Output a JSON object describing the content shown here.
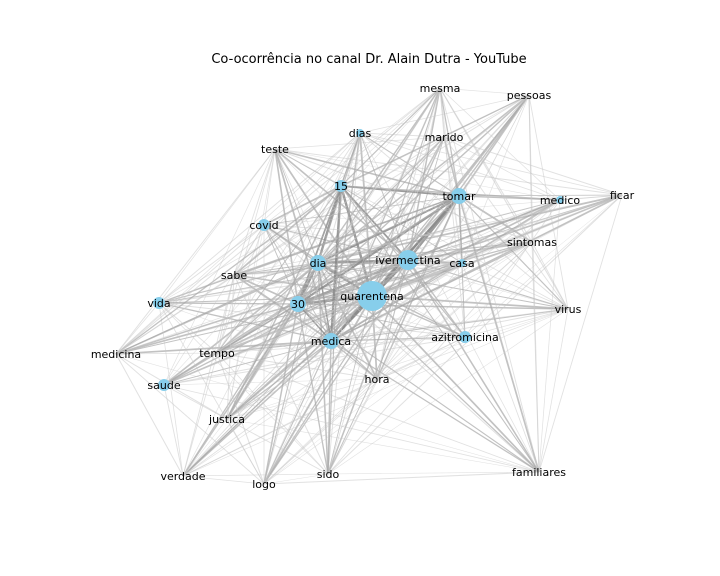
{
  "title": "Co-ocorrência no canal Dr. Alain Dutra - YouTube",
  "colors": {
    "node": "#87ceeb",
    "edge": "#aaaaaa",
    "background": "#ffffff"
  },
  "nodes": [
    {
      "id": "quarentena",
      "label": "quarentena",
      "size": "xl"
    },
    {
      "id": "ivermectina",
      "label": "ivermectina",
      "size": "lg"
    },
    {
      "id": "dia",
      "label": "dia",
      "size": "md"
    },
    {
      "id": "tomar",
      "label": "tomar",
      "size": "md"
    },
    {
      "id": "30",
      "label": "30",
      "size": "md"
    },
    {
      "id": "medica",
      "label": "medica",
      "size": "md"
    },
    {
      "id": "covid",
      "label": "covid",
      "size": "sm"
    },
    {
      "id": "vida",
      "label": "vida",
      "size": "sm"
    },
    {
      "id": "saude",
      "label": "saude",
      "size": "sm"
    },
    {
      "id": "azitromicina",
      "label": "azitromicina",
      "size": "sm"
    },
    {
      "id": "15",
      "label": "15",
      "size": "sm"
    },
    {
      "id": "dias",
      "label": "dias",
      "size": "xs"
    },
    {
      "id": "casa",
      "label": "casa",
      "size": "xs"
    },
    {
      "id": "medico",
      "label": "medico",
      "size": "xs"
    },
    {
      "id": "mesma",
      "label": "mesma",
      "size": "none"
    },
    {
      "id": "pessoas",
      "label": "pessoas",
      "size": "none"
    },
    {
      "id": "marido",
      "label": "marido",
      "size": "none"
    },
    {
      "id": "teste",
      "label": "teste",
      "size": "none"
    },
    {
      "id": "ficar",
      "label": "ficar",
      "size": "none"
    },
    {
      "id": "sintomas",
      "label": "sintomas",
      "size": "none"
    },
    {
      "id": "sabe",
      "label": "sabe",
      "size": "none"
    },
    {
      "id": "virus",
      "label": "virus",
      "size": "none"
    },
    {
      "id": "medicina",
      "label": "medicina",
      "size": "none"
    },
    {
      "id": "tempo",
      "label": "tempo",
      "size": "none"
    },
    {
      "id": "hora",
      "label": "hora",
      "size": "none"
    },
    {
      "id": "justica",
      "label": "justica",
      "size": "none"
    },
    {
      "id": "verdade",
      "label": "verdade",
      "size": "none"
    },
    {
      "id": "logo",
      "label": "logo",
      "size": "none"
    },
    {
      "id": "sido",
      "label": "sido",
      "size": "none"
    },
    {
      "id": "familiares",
      "label": "familiares",
      "size": "none"
    }
  ]
}
